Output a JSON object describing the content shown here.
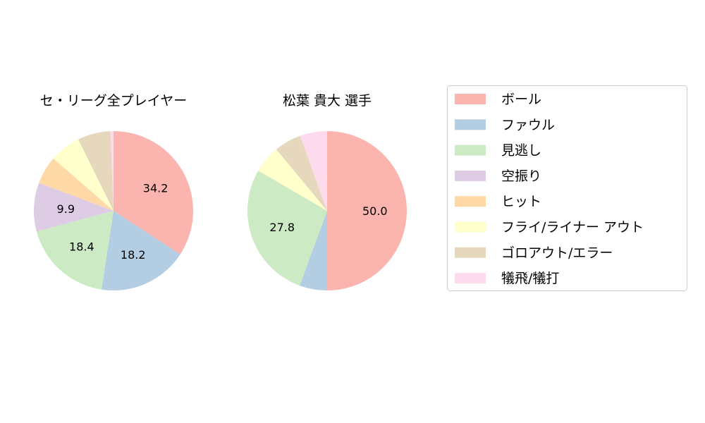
{
  "chart_data": [
    {
      "type": "pie",
      "title": "セ・リーグ全プレイヤー",
      "categories": [
        "ボール",
        "ファウル",
        "見逃し",
        "空振り",
        "ヒット",
        "フライ/ライナー アウト",
        "ゴロアウト/エラー",
        "犠飛/犠打"
      ],
      "values": [
        34.2,
        18.2,
        18.4,
        9.9,
        5.7,
        6.3,
        6.7,
        0.6
      ],
      "labels": [
        "34.2",
        "18.2",
        "18.4",
        "9.9",
        "",
        "",
        "",
        ""
      ]
    },
    {
      "type": "pie",
      "title": "松葉 貴大  選手",
      "categories": [
        "ボール",
        "ファウル",
        "見逃し",
        "空振り",
        "ヒット",
        "フライ/ライナー アウト",
        "ゴロアウト/エラー",
        "犠飛/犠打"
      ],
      "values": [
        50.0,
        5.6,
        27.8,
        0,
        0,
        5.6,
        5.5,
        5.5
      ],
      "labels": [
        "50.0",
        "",
        "27.8",
        "",
        "",
        "",
        "",
        ""
      ]
    }
  ],
  "legend": {
    "placement": "right",
    "entries": [
      "ボール",
      "ファウル",
      "見逃し",
      "空振り",
      "ヒット",
      "フライ/ライナー アウト",
      "ゴロアウト/エラー",
      "犠飛/犠打"
    ]
  },
  "colors": [
    "#fbb4ae",
    "#b3cde3",
    "#ccebc5",
    "#decbe4",
    "#fed9a6",
    "#ffffcc",
    "#e5d8bd",
    "#fddaec"
  ]
}
